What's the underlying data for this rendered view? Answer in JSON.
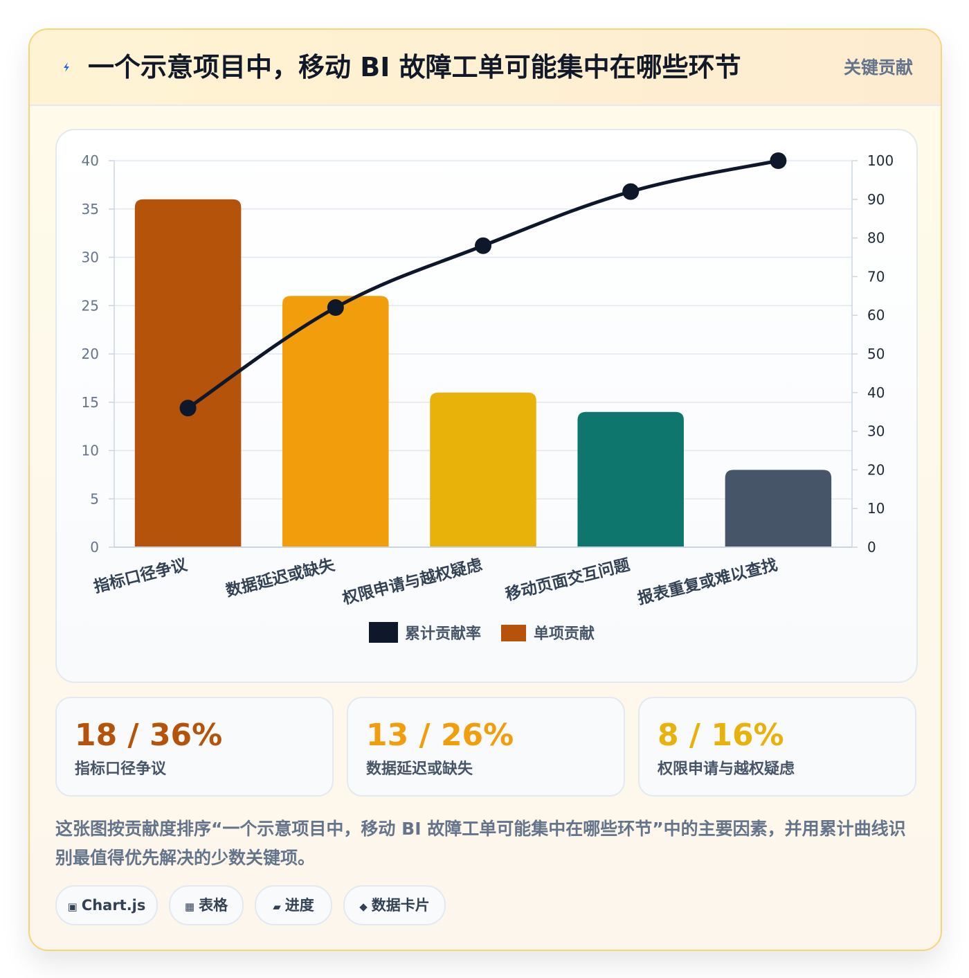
{
  "header": {
    "title": "一个示意项目中，移动 BI 故障工单可能集中在哪些环节",
    "badge": "关键贡献",
    "icon": "lightning-bolt-icon"
  },
  "chart_data": {
    "type": "bar",
    "categories": [
      "指标口径争议",
      "数据延迟或缺失",
      "权限申请与越权疑虑",
      "移动页面交互问题",
      "报表重复或难以查找"
    ],
    "series": [
      {
        "name": "单项贡献",
        "type": "bar",
        "axis": "left",
        "values": [
          36,
          26,
          16,
          14,
          8
        ]
      },
      {
        "name": "累计贡献率",
        "type": "line",
        "axis": "right",
        "values": [
          36,
          62,
          78,
          92,
          100
        ]
      }
    ],
    "bar_colors": [
      "#b45309",
      "#f29e0c",
      "#e8b20b",
      "#0f766e",
      "#475569"
    ],
    "line_color": "#0f172a",
    "ylim_left": [
      0,
      40
    ],
    "yticks_left": [
      0,
      5,
      10,
      15,
      20,
      25,
      30,
      35,
      40
    ],
    "ylim_right": [
      0,
      100
    ],
    "yticks_right": [
      0,
      10,
      20,
      30,
      40,
      50,
      60,
      70,
      80,
      90,
      100
    ],
    "legend": {
      "position": "bottom",
      "entries": [
        "累计贡献率",
        "单项贡献"
      ]
    },
    "grid": true
  },
  "stats": [
    {
      "value": "18 / 36%",
      "label": "指标口径争议",
      "color": "#b45309"
    },
    {
      "value": "13 / 26%",
      "label": "数据延迟或缺失",
      "color": "#f29e0c"
    },
    {
      "value": "8 / 16%",
      "label": "权限申请与越权疑虑",
      "color": "#e8b20b"
    }
  ],
  "description": "这张图按贡献度排序“一个示意项目中，移动 BI 故障工单可能集中在哪些环节”中的主要因素，并用累计曲线识别最值得优先解决的少数关键项。",
  "tags": [
    {
      "icon": "▣",
      "label": "Chart.js"
    },
    {
      "icon": "▦",
      "label": "表格"
    },
    {
      "icon": "▰",
      "label": "进度"
    },
    {
      "icon": "◆",
      "label": "数据卡片"
    }
  ]
}
